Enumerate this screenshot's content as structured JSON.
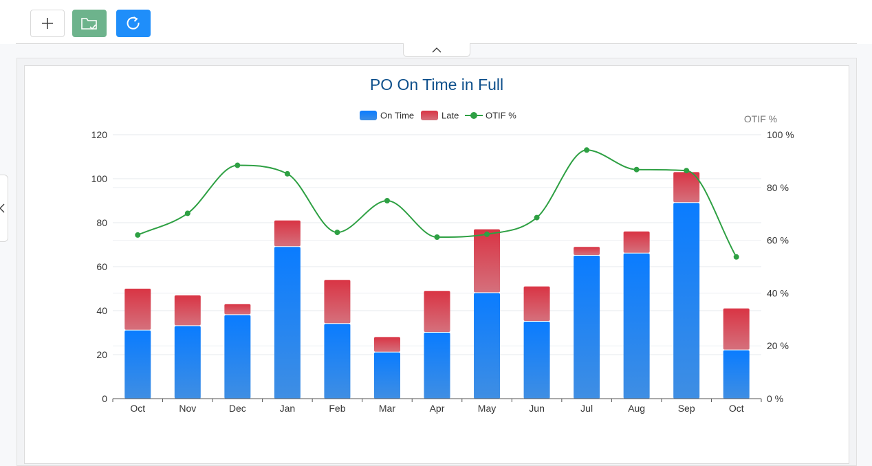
{
  "toolbar": {
    "add_icon": "plus-icon",
    "folder_icon": "folder-check-icon",
    "refresh_icon": "refresh-icon"
  },
  "colors": {
    "on_time": "#1a7ff2",
    "late": "#d64352",
    "otif_line": "#2ea043",
    "title": "#0d4f8b"
  },
  "chart_data": {
    "type": "bar",
    "title": "PO On Time in Full",
    "categories": [
      "Oct",
      "Nov",
      "Dec",
      "Jan",
      "Feb",
      "Mar",
      "Apr",
      "May",
      "Jun",
      "Jul",
      "Aug",
      "Sep",
      "Oct"
    ],
    "series": [
      {
        "name": "On Time",
        "type": "bar",
        "stack": "total",
        "values": [
          31,
          33,
          38,
          69,
          34,
          21,
          30,
          48,
          35,
          65,
          66,
          89,
          22
        ]
      },
      {
        "name": "Late",
        "type": "bar",
        "stack": "total",
        "values": [
          19,
          14,
          5,
          12,
          20,
          7,
          19,
          29,
          16,
          4,
          10,
          14,
          19
        ]
      },
      {
        "name": "OTIF %",
        "type": "line",
        "axis": "right",
        "values": [
          62,
          70.2,
          88.4,
          85.2,
          63,
          75,
          61.2,
          62.3,
          68.6,
          94.2,
          86.8,
          86.4,
          53.7
        ]
      }
    ],
    "y_axis_left": {
      "min": 0,
      "max": 120,
      "ticks": [
        "0",
        "20",
        "40",
        "60",
        "80",
        "100",
        "120"
      ]
    },
    "y_axis_right": {
      "label": "OTIF %",
      "min": 0,
      "max": 100,
      "ticks": [
        "0 %",
        "20 %",
        "40 %",
        "60 %",
        "80 %",
        "100 %"
      ]
    },
    "legend": {
      "position": "top-center",
      "items": [
        "On Time",
        "Late",
        "OTIF %"
      ]
    },
    "grid": true
  }
}
